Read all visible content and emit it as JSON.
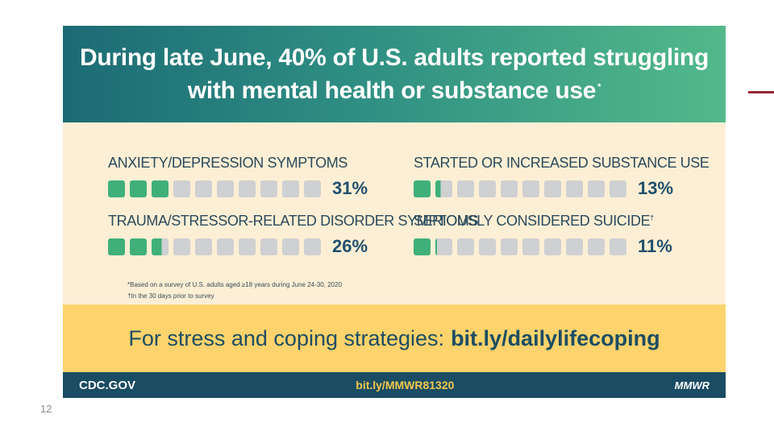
{
  "slide_number": "12",
  "accent_color": "#9b2335",
  "infographic": {
    "title_line1": "During late June, 40% of U.S. adults reported struggling",
    "title_line2": "with mental health or substance use",
    "title_mark": "*",
    "stats": [
      {
        "label": "ANXIETY/DEPRESSION SYMPTOMS",
        "mark": "",
        "percent_text": "31%",
        "value": 31,
        "filled_blocks": 3,
        "total_blocks": 10
      },
      {
        "label": "STARTED OR INCREASED SUBSTANCE USE",
        "mark": "",
        "percent_text": "13%",
        "value": 13,
        "filled_blocks": 1.3,
        "total_blocks": 10
      },
      {
        "label": "TRAUMA/STRESSOR-RELATED DISORDER SYMPTOMS",
        "mark": "",
        "percent_text": "26%",
        "value": 26,
        "filled_blocks": 2.6,
        "total_blocks": 10
      },
      {
        "label": "SERIOUSLY CONSIDERED SUICIDE",
        "mark": "†",
        "percent_text": "11%",
        "value": 11,
        "filled_blocks": 1.1,
        "total_blocks": 10
      }
    ],
    "footnote1": "*Based on a survey of U.S. adults aged  ≥18 years during June 24-30, 2020",
    "footnote2": "†In the 30 days prior to survey",
    "cta_text": "For stress and coping strategies:",
    "cta_link": "bit.ly/dailylifecoping",
    "footer_left": "CDC.GOV",
    "footer_mid": "bit.ly/MMWR81320",
    "footer_right": "MMWR",
    "colors": {
      "header_start": "#1c6b74",
      "header_end": "#52b98a",
      "middle_bg": "#fdefd5",
      "block_filled": "#3fb07a",
      "block_empty": "#cfd0d2",
      "cta_bg": "#fcd36c",
      "footer_bg": "#1a4c63",
      "footer_link": "#f2c84d"
    }
  }
}
